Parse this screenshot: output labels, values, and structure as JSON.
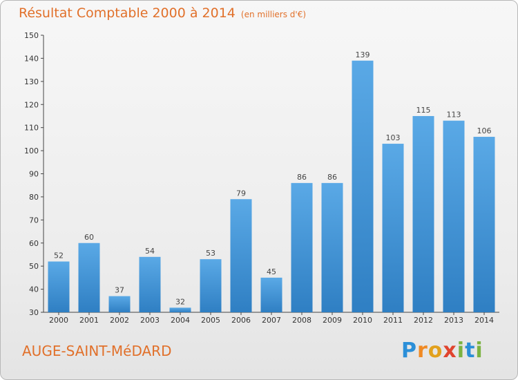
{
  "header": {
    "title": "Résultat Comptable 2000 à 2014",
    "unit": "(en milliers d'€)"
  },
  "footer": {
    "commune": "AUGE-SAINT-MéDARD",
    "brand_letters": [
      "P",
      "r",
      "o",
      "x",
      "i",
      "t",
      "i"
    ],
    "brand_colors": [
      "#2b8fd8",
      "#f08a24",
      "#e2a11d",
      "#e0442e",
      "#7cb342",
      "#2b8fd8",
      "#7cb342"
    ]
  },
  "chart_data": {
    "type": "bar",
    "title": "Résultat Comptable 2000 à 2014",
    "subtitle": "(en milliers d'€)",
    "xlabel": "",
    "ylabel": "",
    "categories": [
      "2000",
      "2001",
      "2002",
      "2003",
      "2004",
      "2005",
      "2006",
      "2007",
      "2008",
      "2009",
      "2010",
      "2011",
      "2012",
      "2013",
      "2014"
    ],
    "values": [
      52,
      60,
      37,
      54,
      32,
      53,
      79,
      45,
      86,
      86,
      139,
      103,
      115,
      113,
      106
    ],
    "ylim": [
      30,
      150
    ],
    "yticks": [
      30,
      40,
      50,
      60,
      70,
      80,
      90,
      100,
      110,
      120,
      130,
      140,
      150
    ],
    "grid": false,
    "data_labels": true,
    "bar_color": "#3a93d6"
  }
}
